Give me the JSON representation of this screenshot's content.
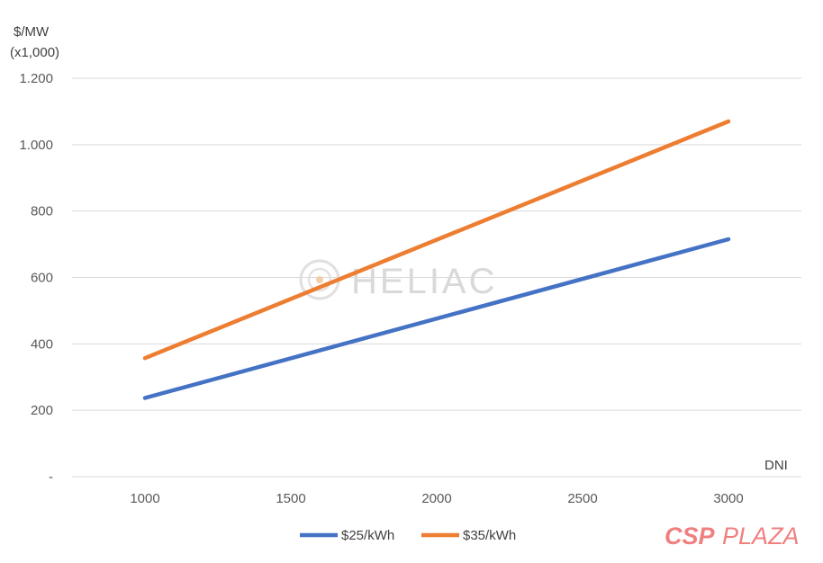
{
  "chart_data": {
    "type": "line",
    "ylabel_line1": "$/MW",
    "ylabel_line2": "(x1,000)",
    "xlabel": "DNI",
    "x": [
      1000,
      3000
    ],
    "xticks": [
      "1000",
      "1500",
      "2000",
      "2500",
      "3000"
    ],
    "xtick_values": [
      1000,
      1500,
      2000,
      2500,
      3000
    ],
    "xlim": [
      750,
      3250
    ],
    "ylim": [
      0,
      1200
    ],
    "yticks": [
      "-",
      "200",
      "400",
      "600",
      "800",
      "1.000",
      "1.200"
    ],
    "ytick_values": [
      0,
      200,
      400,
      600,
      800,
      1000,
      1200
    ],
    "grid": true,
    "legend_position": "bottom",
    "series": [
      {
        "name": "$25/kWh",
        "values": [
          237,
          715
        ],
        "color": "#4472c4"
      },
      {
        "name": "$35/kWh",
        "values": [
          357,
          1070
        ],
        "color": "#ed7d31"
      }
    ]
  },
  "watermark": {
    "text": "HELIAC"
  },
  "brand": {
    "part1": "CSP",
    "part2": "PLAZA",
    "color": "#f08080"
  }
}
